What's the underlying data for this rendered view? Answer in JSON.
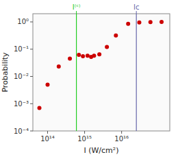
{
  "chart_data": {
    "type": "scatter",
    "x": [
      60000000000000.0,
      100000000000000.0,
      200000000000000.0,
      400000000000000.0,
      700000000000000.0,
      900000000000000.0,
      1200000000000000.0,
      1500000000000000.0,
      1800000000000000.0,
      2500000000000000.0,
      4000000000000000.0,
      7000000000000000.0,
      1.5e+16,
      3e+16,
      6e+16,
      1.2e+17
    ],
    "values": [
      0.0007,
      0.005,
      0.023,
      0.045,
      0.062,
      0.055,
      0.058,
      0.052,
      0.058,
      0.065,
      0.12,
      0.32,
      0.85,
      0.96,
      0.99,
      1.0
    ],
    "color": "#cc0000",
    "xlabel": "I (W/cm²)",
    "ylabel": "Probability",
    "log": true,
    "grid": false,
    "xlim": [
      40000000000000.0,
      2e+17
    ],
    "ylim": [
      0.0001,
      2.0
    ],
    "xticks": [
      {
        "value": 100000000000000.0,
        "label": "10¹⁴"
      },
      {
        "value": 600000000000000.0,
        "label": "I⁽ᶜ⁾"
      },
      {
        "value": 1000000000000000.0,
        "label": "10¹⁵"
      },
      {
        "value": 1e+16,
        "label": "10¹⁶"
      },
      {
        "value": 2.5e+16,
        "label": "Ic"
      }
    ],
    "yticks": [
      {
        "value": 0.0001,
        "label": "10⁻⁴"
      },
      {
        "value": 0.001,
        "label": "10⁻³"
      },
      {
        "value": 0.01,
        "label": "10⁻²"
      },
      {
        "value": 0.1,
        "label": "10⁻¹"
      },
      {
        "value": 1.0,
        "label": "10⁰"
      }
    ],
    "reference_lines": [
      {
        "x": 600000000000000.0,
        "color": "#22cc22"
      },
      {
        "x": 2.5e+16,
        "color": "#6666aa"
      }
    ]
  }
}
